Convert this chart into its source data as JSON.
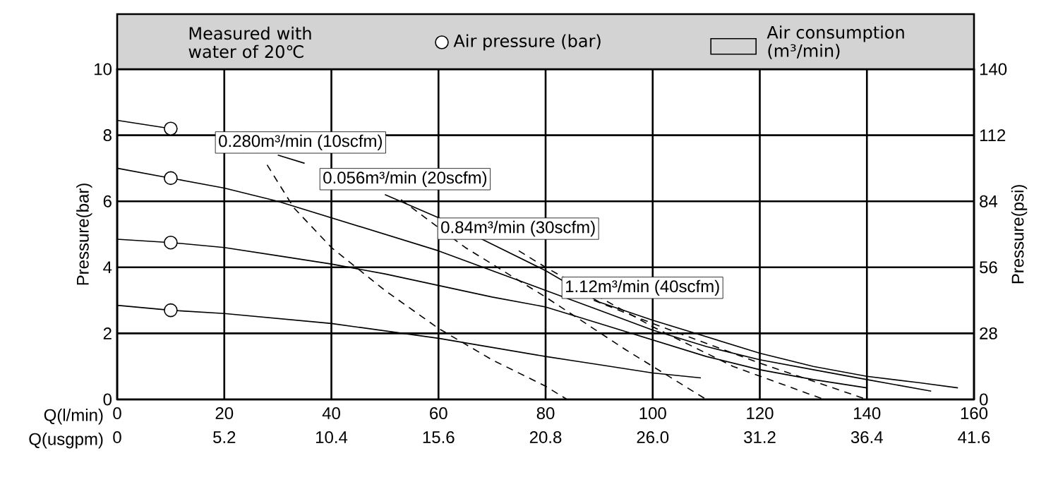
{
  "chart_data": {
    "type": "line",
    "xlabel": "Q(l/min)",
    "x2label": "Q(usgpm)",
    "ylabel": "Pressure(bar)",
    "y2label": "Pressure(psi)",
    "xlim": [
      0,
      160
    ],
    "xticks": [
      0,
      20,
      40,
      60,
      80,
      100,
      120,
      140,
      160
    ],
    "x2lim": [
      0,
      41.6
    ],
    "x2ticks": [
      0,
      5.2,
      10.4,
      15.6,
      20.8,
      {
        "value": 26,
        "label": "26.0"
      },
      31.2,
      36.4,
      41.6
    ],
    "ylim": [
      0,
      10
    ],
    "yticks": [
      0,
      2,
      4,
      6,
      8,
      10
    ],
    "y2lim": [
      0,
      140
    ],
    "y2ticks": [
      0,
      28,
      56,
      84,
      112,
      140
    ],
    "grid": true,
    "legend": "top",
    "series": [
      {
        "color": "#000000",
        "line_style": "solid",
        "marker": "none",
        "x": [
          0,
          10,
          20,
          30,
          35,
          40,
          50,
          60,
          70,
          80,
          90,
          100,
          110,
          120,
          130,
          140,
          150,
          157
        ],
        "values": [
          8.45,
          8.2,
          null,
          7.4,
          7.15,
          null,
          6.2,
          5.5,
          4.7,
          3.9,
          2.95,
          2.4,
          1.9,
          1.4,
          1.0,
          0.7,
          0.5,
          0.35
        ]
      },
      {
        "color": "#000000",
        "line_style": "solid",
        "marker": "none",
        "x": [
          0,
          10,
          20,
          30,
          40,
          50,
          60,
          70,
          80,
          90,
          100,
          110,
          120,
          130,
          140,
          152
        ],
        "values": [
          7.0,
          6.7,
          6.4,
          6.0,
          5.5,
          5.0,
          4.5,
          3.9,
          3.3,
          2.7,
          2.1,
          1.6,
          1.2,
          0.9,
          0.6,
          0.25
        ]
      },
      {
        "color": "#000000",
        "line_style": "solid",
        "marker": "none",
        "x": [
          0,
          10,
          20,
          30,
          40,
          50,
          60,
          70,
          80,
          90,
          100,
          110,
          120,
          130,
          140
        ],
        "values": [
          4.85,
          4.75,
          4.6,
          4.35,
          4.1,
          3.8,
          3.45,
          3.1,
          2.8,
          2.3,
          1.8,
          1.3,
          0.9,
          0.6,
          0.35
        ]
      },
      {
        "color": "#000000",
        "line_style": "solid",
        "marker": "none",
        "x": [
          0,
          10,
          20,
          40,
          60,
          80,
          90,
          100,
          109
        ],
        "values": [
          2.85,
          2.7,
          2.6,
          2.3,
          1.85,
          1.3,
          1.05,
          0.8,
          0.65
        ]
      },
      {
        "type": "scatter",
        "name": "Air pressure (bar)",
        "color": "#000000",
        "marker": "circle",
        "x": [
          10,
          10,
          10,
          10
        ],
        "values": [
          8.2,
          6.7,
          4.75,
          2.7
        ]
      },
      {
        "color": "#000000",
        "line_style": "dashed",
        "marker": "none",
        "x": [
          28,
          33,
          40,
          50,
          60,
          70,
          80,
          84
        ],
        "values": [
          7.1,
          5.8,
          4.6,
          3.3,
          2.15,
          1.2,
          0.4,
          0
        ]
      },
      {
        "color": "#000000",
        "line_style": "dashed",
        "marker": "none",
        "x": [
          53,
          65,
          80,
          95,
          110
        ],
        "values": [
          6.05,
          4.6,
          3.1,
          1.5,
          0
        ]
      },
      {
        "color": "#000000",
        "line_style": "dashed",
        "marker": "none",
        "x": [
          75,
          80,
          100,
          115,
          132
        ],
        "values": [
          4.5,
          4.0,
          2.2,
          1.0,
          0
        ]
      },
      {
        "color": "#000000",
        "line_style": "dashed",
        "marker": "none",
        "x": [
          89,
          100,
          120,
          140
        ],
        "values": [
          3.0,
          2.3,
          1.1,
          0
        ]
      }
    ],
    "annotations": [
      "Measured with water of 20℃",
      "Air consumption (m³/min)",
      "0.280m³/min (10scfm)",
      "0.056m³/min (20scfm)",
      "0.84m³/min (30scfm)",
      "1.12m³/min (40scfm)"
    ]
  }
}
